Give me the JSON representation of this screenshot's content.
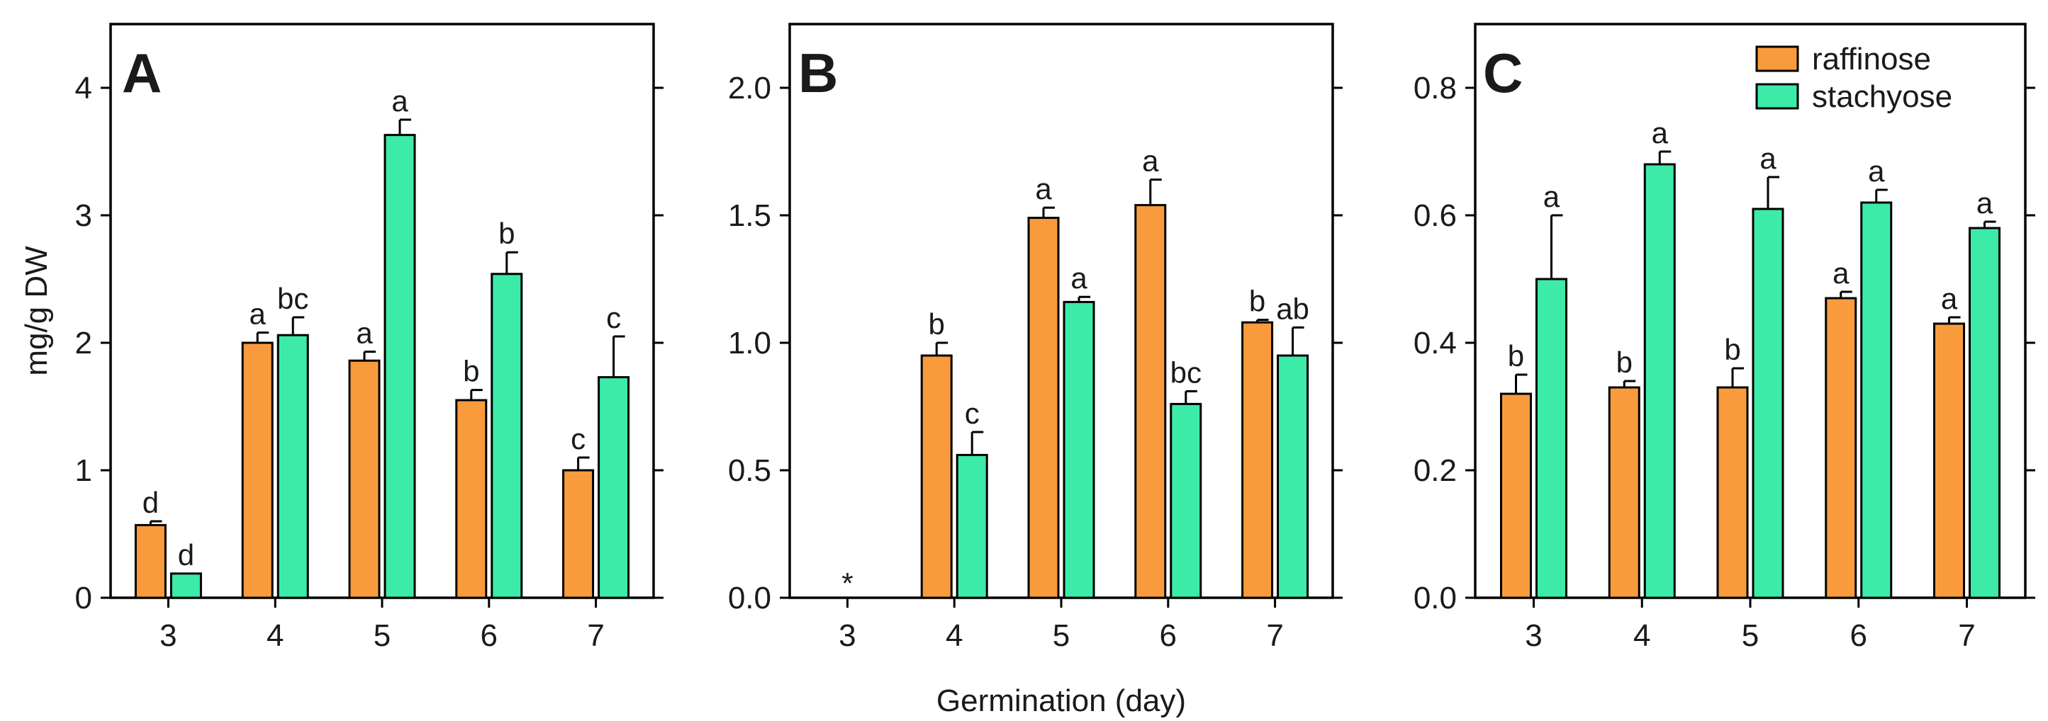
{
  "figure": {
    "ylabel": "mg/g DW",
    "xlabel": "Germination (day)",
    "legend": {
      "position": "top-right of panel C",
      "entries": [
        {
          "name": "raffinose",
          "color": "#F99B3D"
        },
        {
          "name": "stachyose",
          "color": "#3DEBA8"
        }
      ]
    },
    "colors": {
      "raffinose": "#F99B3D",
      "stachyose": "#3DEBA8"
    }
  },
  "chart_data": [
    {
      "type": "bar",
      "panel": "A",
      "categories": [
        "3",
        "4",
        "5",
        "6",
        "7"
      ],
      "ylim": [
        0,
        4.5
      ],
      "yticks": [
        "0",
        "1",
        "2",
        "3",
        "4"
      ],
      "ytick_values": [
        0,
        1,
        2,
        3,
        4
      ],
      "series": [
        {
          "name": "raffinose",
          "values": [
            0.57,
            2.0,
            1.86,
            1.55,
            1.0
          ],
          "errors": [
            0.03,
            0.08,
            0.07,
            0.08,
            0.1
          ],
          "labels": [
            "d",
            "a",
            "a",
            "b",
            "c"
          ]
        },
        {
          "name": "stachyose",
          "values": [
            0.19,
            2.06,
            3.63,
            2.54,
            1.73
          ],
          "errors": [
            0.0,
            0.14,
            0.12,
            0.17,
            0.32
          ],
          "labels": [
            "d",
            "bc",
            "a",
            "b",
            "c"
          ]
        }
      ],
      "annotations": []
    },
    {
      "type": "bar",
      "panel": "B",
      "categories": [
        "3",
        "4",
        "5",
        "6",
        "7"
      ],
      "ylim": [
        0,
        2.25
      ],
      "yticks": [
        "0.0",
        "0.5",
        "1.0",
        "1.5",
        "2.0"
      ],
      "ytick_values": [
        0,
        0.5,
        1.0,
        1.5,
        2.0
      ],
      "series": [
        {
          "name": "raffinose",
          "values": [
            null,
            0.95,
            1.49,
            1.54,
            1.08
          ],
          "errors": [
            null,
            0.05,
            0.04,
            0.1,
            0.01
          ],
          "labels": [
            "",
            "b",
            "a",
            "a",
            "b"
          ]
        },
        {
          "name": "stachyose",
          "values": [
            null,
            0.56,
            1.16,
            0.76,
            0.95
          ],
          "errors": [
            null,
            0.09,
            0.02,
            0.05,
            0.11
          ],
          "labels": [
            "",
            "c",
            "a",
            "bc",
            "ab"
          ]
        }
      ],
      "annotations": [
        {
          "category": "3",
          "text": "*"
        }
      ]
    },
    {
      "type": "bar",
      "panel": "C",
      "categories": [
        "3",
        "4",
        "5",
        "6",
        "7"
      ],
      "ylim": [
        0,
        0.9
      ],
      "yticks": [
        "0.0",
        "0.2",
        "0.4",
        "0.6",
        "0.8"
      ],
      "ytick_values": [
        0,
        0.2,
        0.4,
        0.6,
        0.8
      ],
      "series": [
        {
          "name": "raffinose",
          "values": [
            0.32,
            0.33,
            0.33,
            0.47,
            0.43
          ],
          "errors": [
            0.03,
            0.01,
            0.03,
            0.01,
            0.01
          ],
          "labels": [
            "b",
            "b",
            "b",
            "a",
            "a"
          ]
        },
        {
          "name": "stachyose",
          "values": [
            0.5,
            0.68,
            0.61,
            0.62,
            0.58
          ],
          "errors": [
            0.1,
            0.02,
            0.05,
            0.02,
            0.01
          ],
          "labels": [
            "a",
            "a",
            "a",
            "a",
            "a"
          ]
        }
      ],
      "annotations": []
    }
  ]
}
